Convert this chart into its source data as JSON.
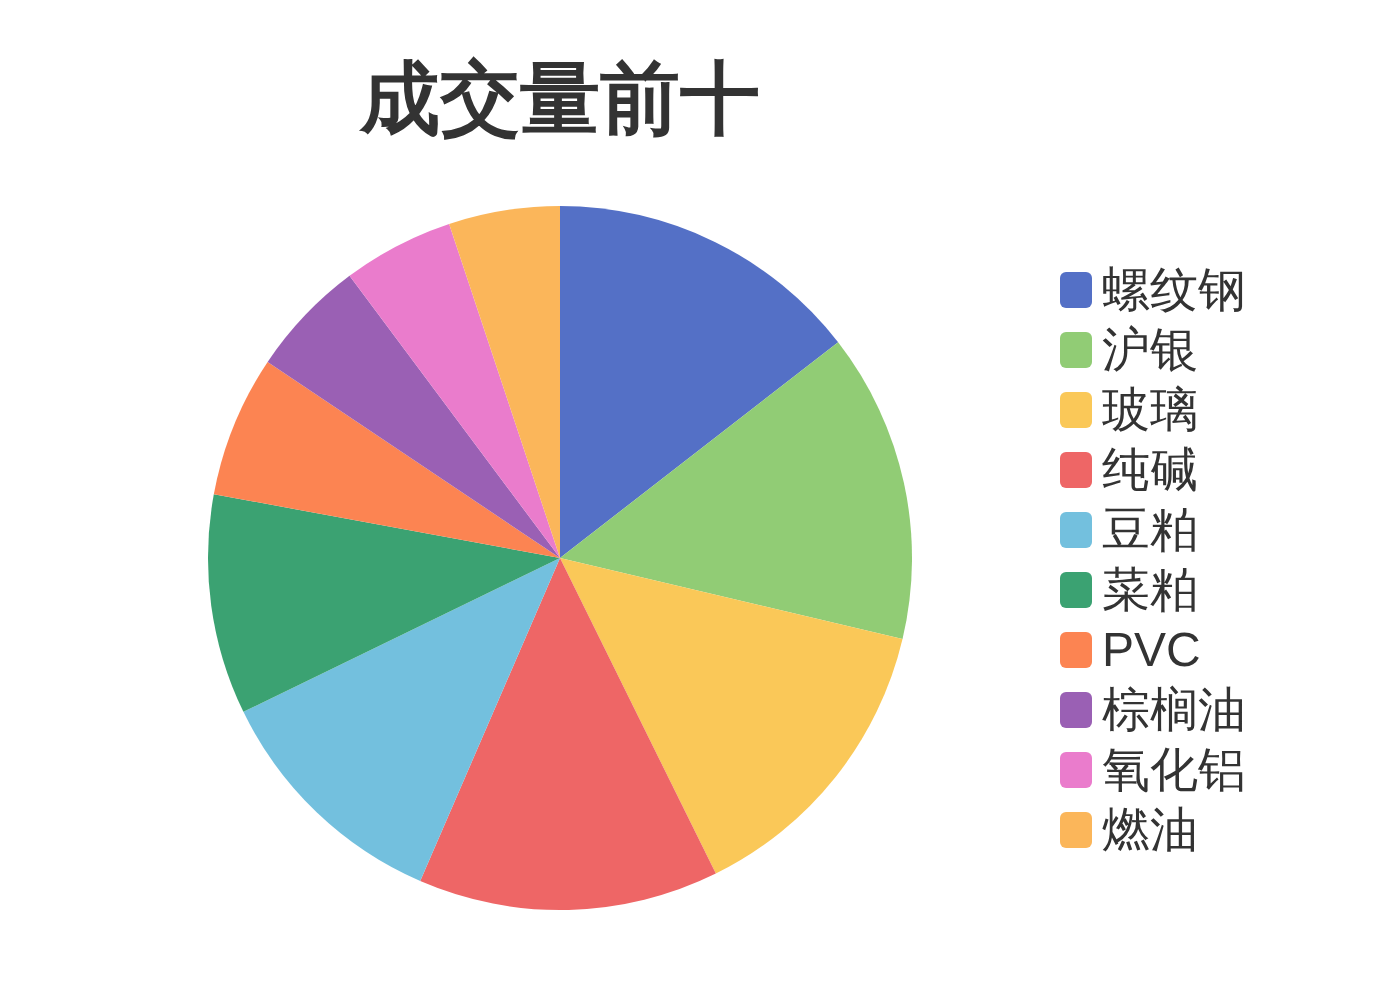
{
  "chart_data": {
    "type": "pie",
    "title": "成交量前十",
    "categories": [
      "螺纹钢",
      "沪银",
      "玻璃",
      "纯碱",
      "豆粕",
      "菜粕",
      "PVC",
      "棕榈油",
      "氧化铝",
      "燃油"
    ],
    "values": [
      14.5,
      14.2,
      14.0,
      13.8,
      11.3,
      10.1,
      6.5,
      5.4,
      5.1,
      5.1
    ],
    "colors": [
      "#5470c6",
      "#91cc75",
      "#fac858",
      "#ee6666",
      "#73c0de",
      "#3ba272",
      "#fc8452",
      "#9a60b4",
      "#ea7ccc",
      "#fbb65a"
    ],
    "legend": "right"
  }
}
